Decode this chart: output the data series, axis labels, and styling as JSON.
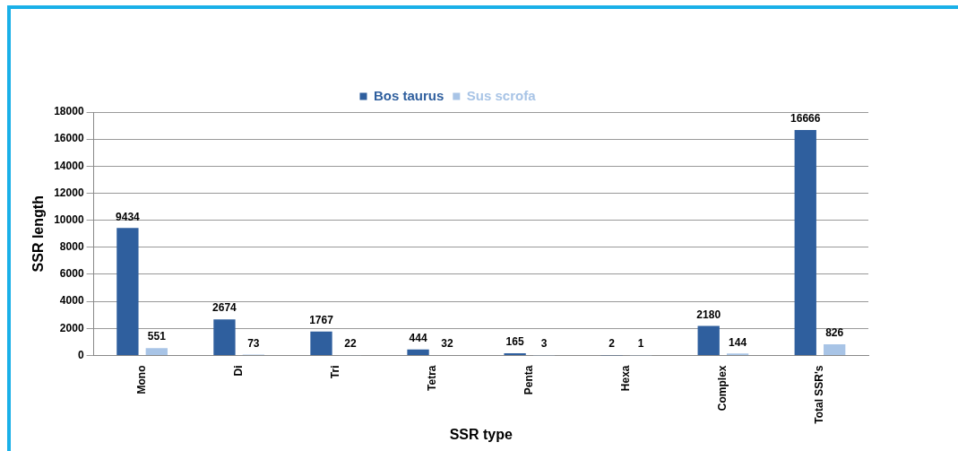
{
  "chart_data": {
    "type": "bar",
    "xlabel": "SSR type",
    "ylabel": "SSR length",
    "categories": [
      "Mono",
      "Di",
      "Tri",
      "Tetra",
      "Penta",
      "Hexa",
      "Complex",
      "Total SSR's"
    ],
    "series": [
      {
        "name": "Bos taurus",
        "color": "#2f5f9e",
        "values": [
          9434,
          2674,
          1767,
          444,
          165,
          2,
          2180,
          16666
        ]
      },
      {
        "name": "Sus scrofa",
        "color": "#a8c4e6",
        "values": [
          551,
          73,
          22,
          32,
          3,
          1,
          144,
          826
        ]
      }
    ],
    "ylim": [
      0,
      18000
    ],
    "yticks": [
      0,
      2000,
      4000,
      6000,
      8000,
      10000,
      12000,
      14000,
      16000,
      18000
    ],
    "grid": "y",
    "legend": "top",
    "data_labels": true
  }
}
